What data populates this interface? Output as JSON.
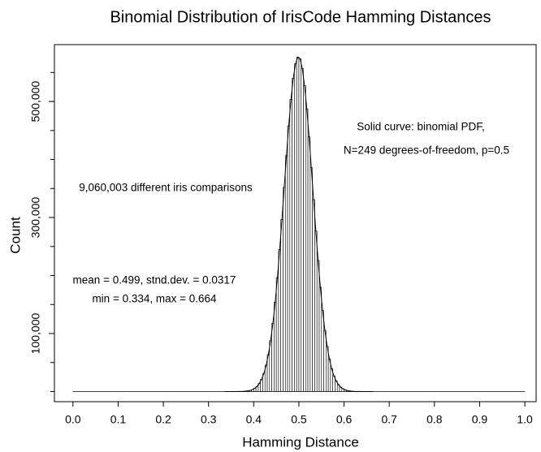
{
  "chart_data": {
    "type": "histogram",
    "title": "Binomial Distribution of IrisCode Hamming Distances",
    "x_label": "Hamming Distance",
    "y_label": "Count",
    "annotations": [
      "Solid curve:  binomial PDF,",
      "N=249 degrees-of-freedom, p=0.5",
      "9,060,003 different iris comparisons",
      "mean = 0.499,  stnd.dev. = 0.0317",
      "min = 0.334,  max = 0.664"
    ],
    "bins": [
      0.335,
      0.34,
      0.345,
      0.35,
      0.355,
      0.36,
      0.365,
      0.37,
      0.375,
      0.38,
      0.385,
      0.39,
      0.395,
      0.4,
      0.405,
      0.41,
      0.415,
      0.42,
      0.425,
      0.43,
      0.435,
      0.44,
      0.445,
      0.45,
      0.455,
      0.46,
      0.465,
      0.47,
      0.475,
      0.48,
      0.485,
      0.49,
      0.495,
      0.5,
      0.505,
      0.51,
      0.515,
      0.52,
      0.525,
      0.53,
      0.535,
      0.54,
      0.545,
      0.55,
      0.555,
      0.56,
      0.565,
      0.57,
      0.575,
      0.58,
      0.585,
      0.59,
      0.595,
      0.6,
      0.605,
      0.61,
      0.615,
      0.62,
      0.625,
      0.63,
      0.635,
      0.64,
      0.645,
      0.65,
      0.655,
      0.66,
      0.665
    ],
    "values": [
      0,
      0,
      0,
      0,
      0,
      0,
      100,
      200,
      400,
      700,
      1200,
      2000,
      3400,
      5600,
      8900,
      13900,
      21100,
      31300,
      45300,
      63800,
      87700,
      117700,
      153900,
      196300,
      244700,
      296700,
      351800,
      406600,
      458000,
      503600,
      540000,
      564800,
      576400,
      573600,
      556900,
      527400,
      487200,
      439100,
      385900,
      330900,
      276700,
      225800,
      179600,
      139500,
      105600,
      77900,
      56200,
      39500,
      27000,
      18100,
      11800,
      7500,
      4700,
      2800,
      1700,
      1000,
      500,
      300,
      200,
      100,
      0,
      0,
      0,
      0,
      0,
      0
    ],
    "color": "#ffffff",
    "edge_color": "#000000",
    "xlim": [
      -0.041,
      1.025
    ],
    "ylim": [
      -17500,
      598000
    ],
    "xticks": [
      {
        "value": 0,
        "label": "0.0"
      },
      0.1,
      0.2,
      0.3,
      0.4,
      0.5,
      0.6,
      0.7,
      0.8,
      0.9,
      {
        "value": 1,
        "label": "1.0"
      }
    ],
    "yticks": [
      {
        "value": 100000,
        "label": "100,000"
      },
      {
        "value": 300000,
        "label": "300,000"
      },
      {
        "value": 500000,
        "label": "500,000"
      }
    ],
    "yminorticks": [
      0,
      50000,
      100000,
      150000,
      200000,
      250000,
      300000,
      350000,
      400000,
      450000,
      500000,
      550000
    ],
    "grid": false
  }
}
